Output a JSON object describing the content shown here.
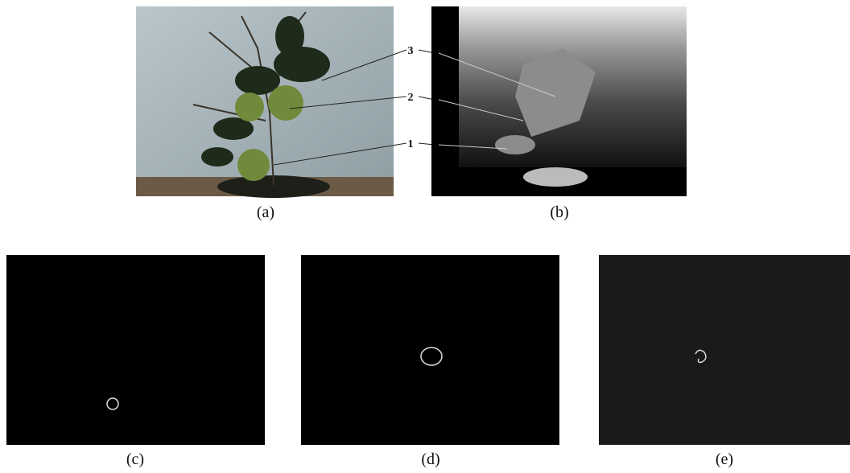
{
  "panels": [
    {
      "label": "(a)"
    },
    {
      "label": "(b)"
    },
    {
      "label": "(c)"
    },
    {
      "label": "(d)"
    },
    {
      "label": "(e)"
    }
  ],
  "callouts": [
    {
      "label": "3"
    },
    {
      "label": "2"
    },
    {
      "label": "1"
    }
  ]
}
